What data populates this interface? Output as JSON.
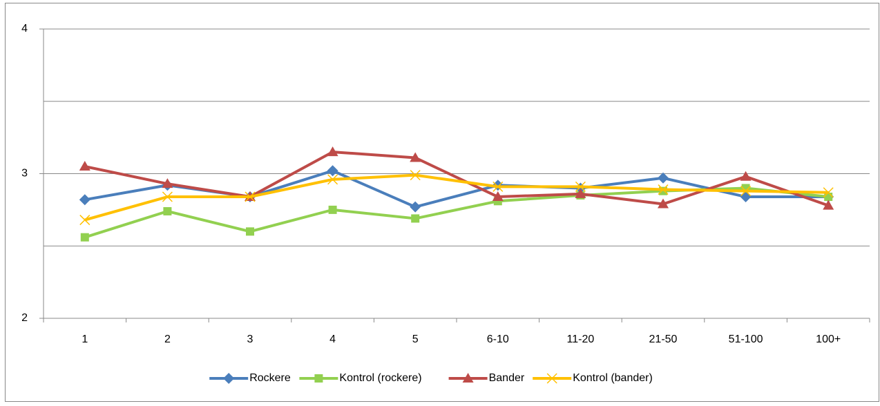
{
  "chart_data": {
    "type": "line",
    "categories": [
      "1",
      "2",
      "3",
      "4",
      "5",
      "6-10",
      "11-20",
      "21-50",
      "51-100",
      "100+"
    ],
    "series": [
      {
        "name": "Rockere",
        "color": "#4a7ebb",
        "marker": "diamond",
        "values": [
          2.82,
          2.92,
          2.84,
          3.02,
          2.77,
          2.92,
          2.9,
          2.97,
          2.84,
          2.84
        ]
      },
      {
        "name": "Kontrol (rockere)",
        "color": "#92d050",
        "marker": "square",
        "values": [
          2.56,
          2.74,
          2.6,
          2.75,
          2.69,
          2.81,
          2.85,
          2.88,
          2.9,
          2.84
        ]
      },
      {
        "name": "Bander",
        "color": "#be4b48",
        "marker": "triangle",
        "values": [
          3.05,
          2.93,
          2.84,
          3.15,
          3.11,
          2.84,
          2.86,
          2.79,
          2.98,
          2.78
        ]
      },
      {
        "name": "Kontrol (bander)",
        "color": "#ffc000",
        "marker": "x",
        "values": [
          2.68,
          2.84,
          2.84,
          2.96,
          2.99,
          2.91,
          2.91,
          2.89,
          2.88,
          2.87
        ]
      }
    ],
    "ylim": [
      2,
      4
    ],
    "yticks": [
      2,
      3,
      4
    ],
    "ygrid": [
      2.5,
      3,
      3.5,
      4
    ],
    "legend": "bottom"
  }
}
